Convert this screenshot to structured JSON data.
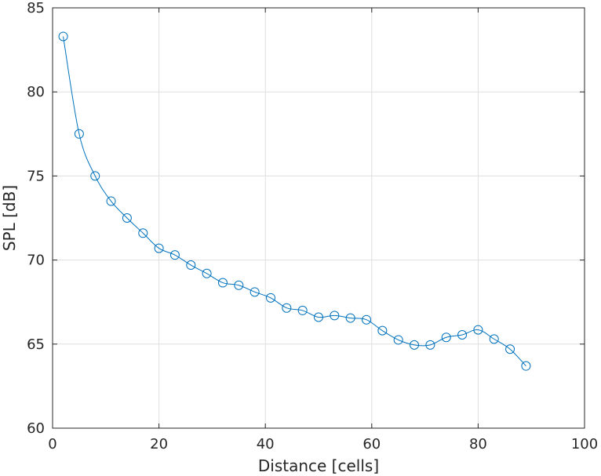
{
  "chart_data": {
    "type": "line",
    "title": "",
    "xlabel": "Distance [cells]",
    "ylabel": "SPL [dB]",
    "xlim": [
      0,
      100
    ],
    "ylim": [
      60,
      85
    ],
    "xticks": [
      0,
      20,
      40,
      60,
      80,
      100
    ],
    "yticks": [
      60,
      65,
      70,
      75,
      80,
      85
    ],
    "grid": true,
    "marker": "circle",
    "color": "#0072BD",
    "series": [
      {
        "x": [
          2,
          5,
          8,
          11,
          14,
          17,
          20,
          23,
          26,
          29,
          32,
          35,
          38,
          41,
          44,
          47,
          50,
          53,
          56,
          59,
          62,
          65,
          68,
          71,
          74,
          77,
          80,
          83,
          86,
          89
        ],
        "y": [
          83.3,
          77.5,
          75.0,
          73.5,
          72.5,
          71.6,
          70.7,
          70.3,
          69.7,
          69.2,
          68.65,
          68.5,
          68.1,
          67.75,
          67.15,
          67.0,
          66.6,
          66.7,
          66.55,
          66.45,
          65.8,
          65.25,
          64.95,
          64.95,
          65.4,
          65.55,
          65.85,
          65.3,
          64.7,
          63.7
        ]
      }
    ]
  }
}
